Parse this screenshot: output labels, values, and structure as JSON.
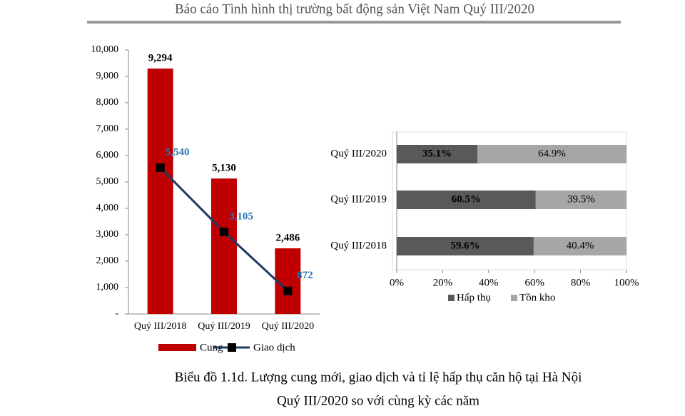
{
  "header": {
    "title": "Báo cáo Tình hình thị trường bất động sản Việt Nam Quý III/2020"
  },
  "chart_data": [
    {
      "type": "bar",
      "categories": [
        "Quý III/2018",
        "Quý III/2019",
        "Quý III/2020"
      ],
      "series": [
        {
          "name": "Cung",
          "type": "bar",
          "color": "#c00000",
          "values": [
            9294,
            5130,
            2486
          ],
          "value_labels": [
            "9,294",
            "5,130",
            "2,486"
          ]
        },
        {
          "name": "Giao dịch",
          "type": "line",
          "color": "#1f3864",
          "label_color": "#2e75b6",
          "values": [
            5540,
            3105,
            872
          ],
          "value_labels": [
            "5,540",
            "3,105",
            "872"
          ]
        }
      ],
      "ylim": [
        0,
        10000
      ],
      "yticks": [
        {
          "value": 0,
          "label": "-"
        },
        {
          "value": 1000,
          "label": "1,000"
        },
        {
          "value": 2000,
          "label": "2,000"
        },
        {
          "value": 3000,
          "label": "3,000"
        },
        {
          "value": 4000,
          "label": "4,000"
        },
        {
          "value": 5000,
          "label": "5,000"
        },
        {
          "value": 6000,
          "label": "6,000"
        },
        {
          "value": 7000,
          "label": "7,000"
        },
        {
          "value": 8000,
          "label": "8,000"
        },
        {
          "value": 9000,
          "label": "9,000"
        },
        {
          "value": 10000,
          "label": "10,000"
        }
      ],
      "legend": "bottom"
    },
    {
      "type": "stacked_barh",
      "categories": [
        "Quý III/2020",
        "Quý III/2019",
        "Quý III/2018"
      ],
      "series": [
        {
          "name": "Hấp thụ",
          "color": "#595959",
          "values": [
            35.1,
            60.5,
            59.6
          ],
          "value_labels": [
            "35.1%",
            "60.5%",
            "59.6%"
          ]
        },
        {
          "name": "Tồn kho",
          "color": "#a6a6a6",
          "values": [
            64.9,
            39.5,
            40.4
          ],
          "value_labels": [
            "64.9%",
            "39.5%",
            "40.4%"
          ]
        }
      ],
      "xlim": [
        0,
        100
      ],
      "xticks": [
        {
          "value": 0,
          "label": "0%"
        },
        {
          "value": 20,
          "label": "20%"
        },
        {
          "value": 40,
          "label": "40%"
        },
        {
          "value": 60,
          "label": "60%"
        },
        {
          "value": 80,
          "label": "80%"
        },
        {
          "value": 100,
          "label": "100%"
        }
      ],
      "legend": "bottom"
    }
  ],
  "caption": [
    "Biểu đồ 1.1d. Lượng cung mới, giao dịch và tỉ lệ hấp thụ căn hộ tại Hà Nội",
    "Quý III/2020 so với cùng kỳ các năm"
  ]
}
